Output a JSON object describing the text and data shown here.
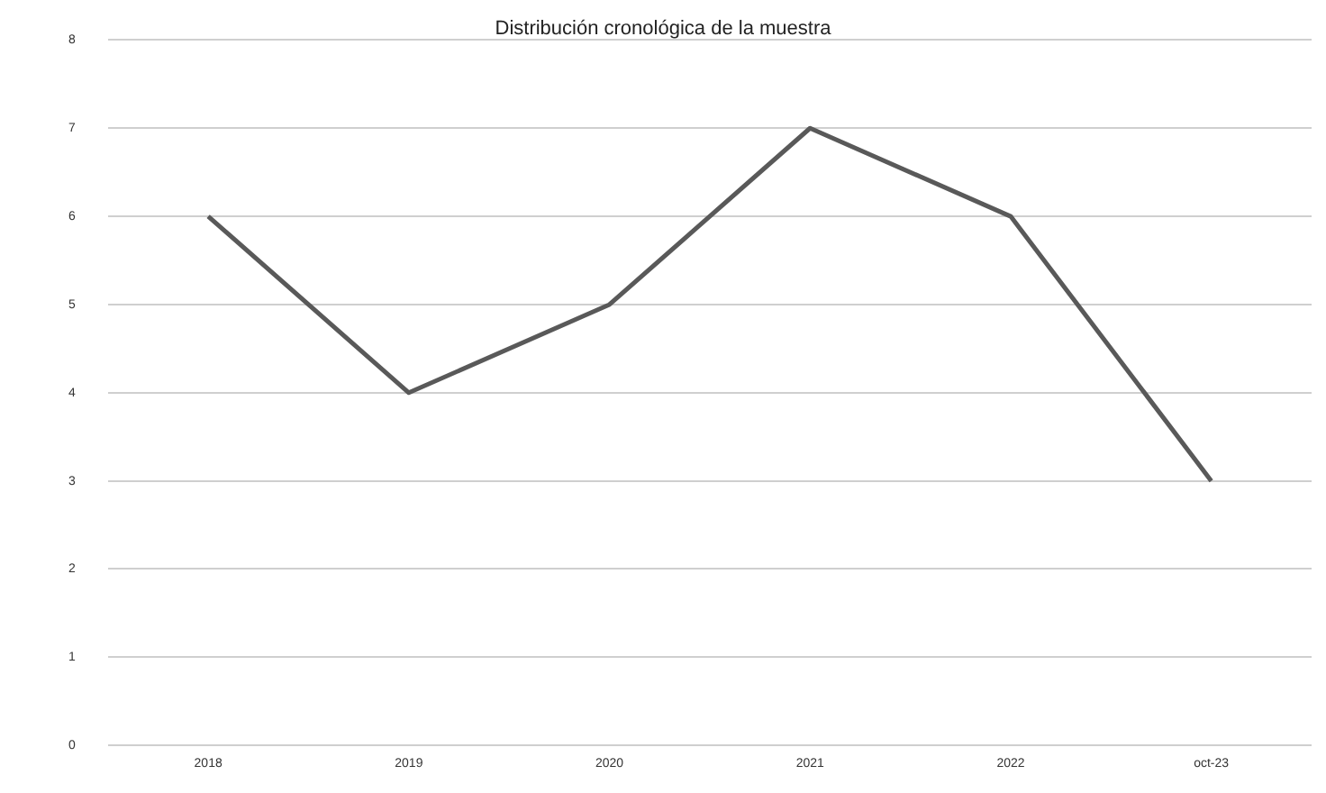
{
  "chart_data": {
    "type": "line",
    "title": "Distribución cronológica de la muestra",
    "categories": [
      "2018",
      "2019",
      "2020",
      "2021",
      "2022",
      "oct-23"
    ],
    "series": [
      {
        "color": "#595959",
        "values": [
          6,
          4,
          5,
          7,
          6,
          3
        ]
      }
    ],
    "ylim": [
      0,
      8
    ],
    "yticks": [
      0,
      1,
      2,
      3,
      4,
      5,
      6,
      7,
      8
    ],
    "grid": "y",
    "legend": false,
    "marker": "none"
  }
}
